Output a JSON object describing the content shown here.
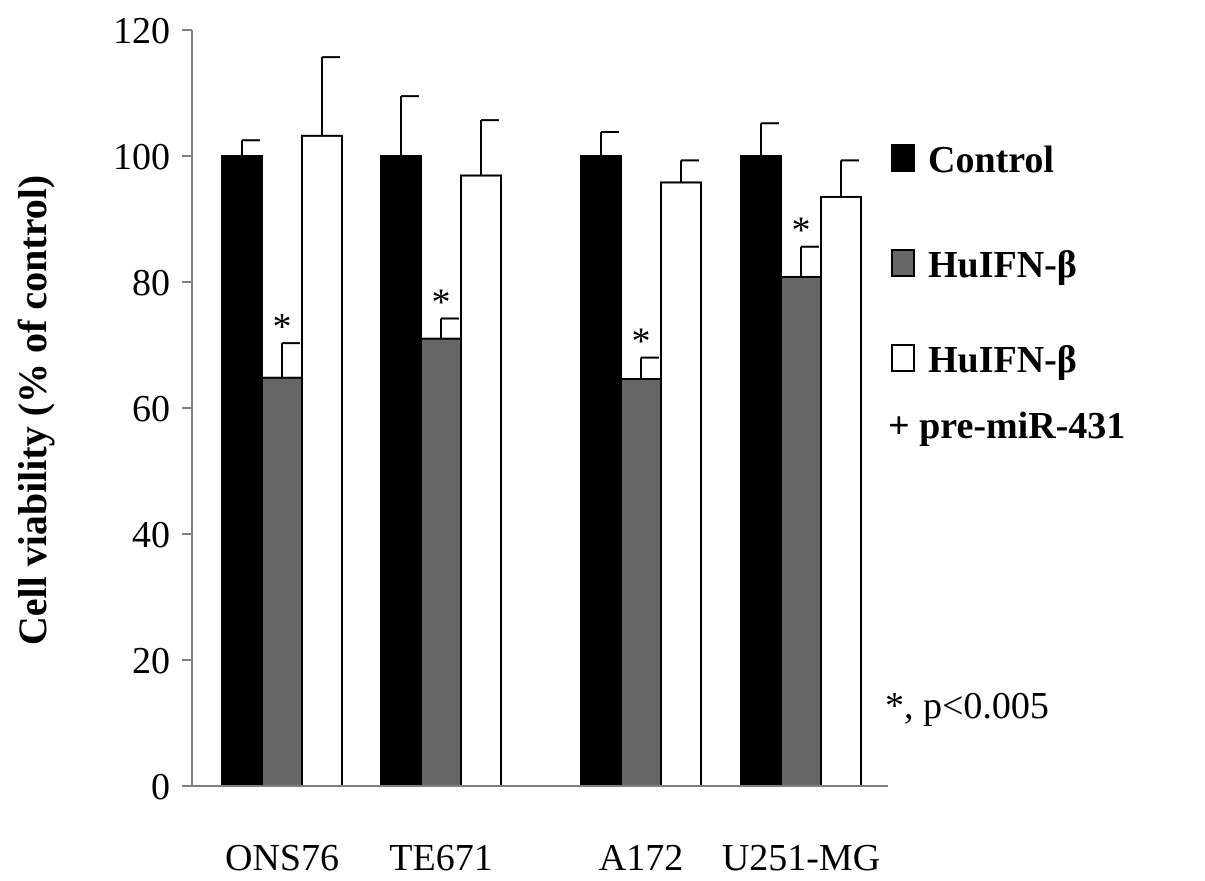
{
  "chart_data": {
    "type": "bar",
    "title": "",
    "xlabel": "",
    "ylabel": "Cell viability  (% of control)",
    "ylim": [
      0,
      120
    ],
    "yticks": [
      "0",
      "20",
      "40",
      "60",
      "80",
      "100",
      "120"
    ],
    "grid": false,
    "legend_position": "right",
    "categories": [
      "ONS76",
      "TE671",
      "A172",
      "U251-MG"
    ],
    "series": [
      {
        "name": "Control",
        "color": "#000000",
        "values": [
          100,
          100,
          100,
          100
        ],
        "errors": [
          2.5,
          9.5,
          3.8,
          5.2
        ]
      },
      {
        "name": "HuIFN-β",
        "color": "#666666",
        "values": [
          64.8,
          71.0,
          64.6,
          80.8
        ],
        "errors": [
          5.5,
          3.2,
          3.4,
          4.8
        ]
      },
      {
        "name": "HuIFN-β\n+ pre-miR-431",
        "legend_lines": [
          "HuIFN-β",
          "+ pre-miR-431"
        ],
        "color": "#ffffff",
        "values": [
          103.2,
          96.9,
          95.8,
          93.5
        ],
        "errors": [
          12.5,
          8.8,
          3.5,
          5.8
        ]
      }
    ],
    "significance_marks": [
      {
        "category": "ONS76",
        "series": "HuIFN-β",
        "label": "*"
      },
      {
        "category": "TE671",
        "series": "HuIFN-β",
        "label": "*"
      },
      {
        "category": "A172",
        "series": "HuIFN-β",
        "label": "*"
      },
      {
        "category": "U251-MG",
        "series": "HuIFN-β",
        "label": "*"
      }
    ],
    "annotation": "*, p<0.005"
  }
}
